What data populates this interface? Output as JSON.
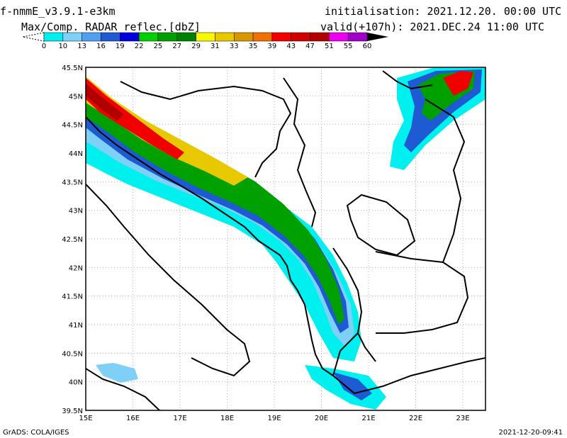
{
  "header": {
    "model": "f-nmmE_v3.9.1-e3km",
    "product": "Max/Comp. RADAR reflec.[dbZ]",
    "init": "initialisation: 2021.12.20. 00:00 UTC",
    "valid": "valid(+107h): 2021.DEC.24 11:00 UTC"
  },
  "legend": {
    "ticks": [
      "0",
      "10",
      "13",
      "16",
      "19",
      "22",
      "25",
      "27",
      "29",
      "31",
      "33",
      "35",
      "39",
      "43",
      "47",
      "51",
      "55",
      "60"
    ],
    "colors": [
      "#00f0f0",
      "#7fd0f6",
      "#50a0f0",
      "#1e5ad2",
      "#0000dc",
      "#00d000",
      "#00a000",
      "#008000",
      "#f8f800",
      "#e8c800",
      "#d89800",
      "#f07000",
      "#f00000",
      "#d00000",
      "#b00000",
      "#f000f0",
      "#a000c8"
    ],
    "top_color": "#000000"
  },
  "map": {
    "lat_labels": [
      "45.5N",
      "45N",
      "44.5N",
      "44N",
      "43.5N",
      "43N",
      "42.5N",
      "42N",
      "41.5N",
      "41N",
      "40.5N",
      "40N",
      "39.5N"
    ],
    "lon_labels": [
      "15E",
      "16E",
      "17E",
      "18E",
      "19E",
      "20E",
      "21E",
      "22E",
      "23E"
    ]
  },
  "footer": {
    "credit": "GrADS: COLA/IGES",
    "timestamp": "2021-12-20-09:41"
  }
}
